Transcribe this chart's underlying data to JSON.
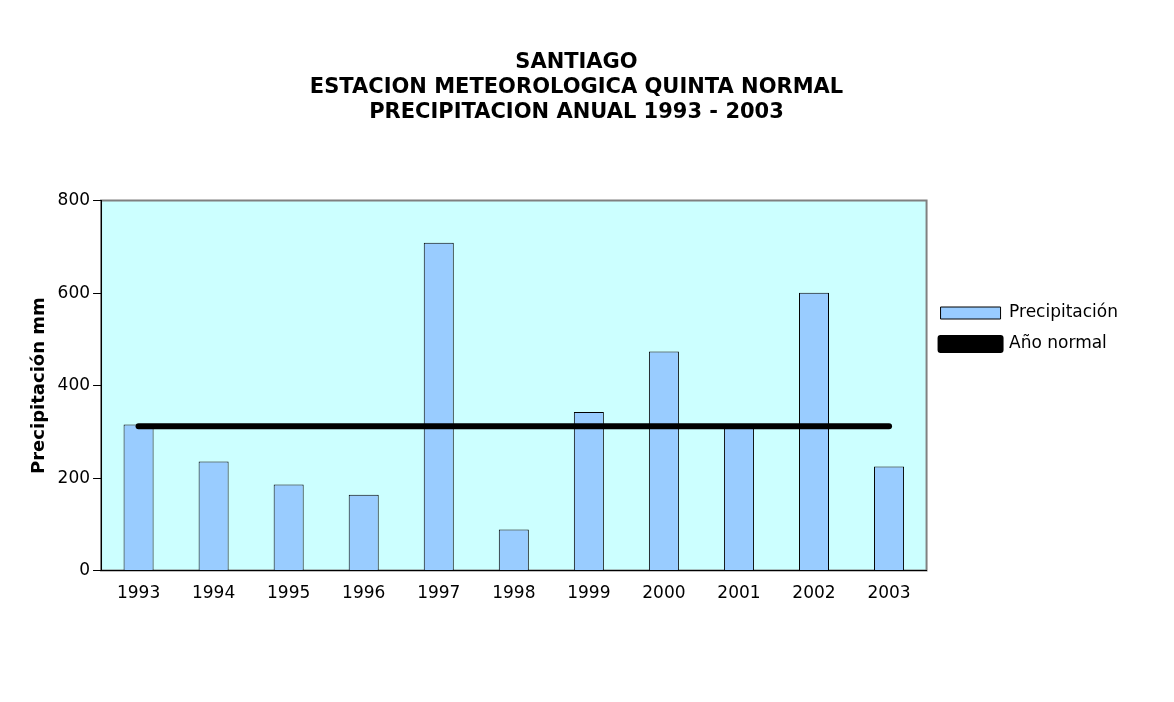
{
  "chart_data": {
    "type": "bar",
    "title": "SANTIAGO\nESTACION METEOROLOGICA QUINTA NORMAL\nPRECIPITACION ANUAL 1993 - 2003",
    "ylabel": "Precipitación mm",
    "categories": [
      "1993",
      "1994",
      "1995",
      "1996",
      "1997",
      "1998",
      "1999",
      "2000",
      "2001",
      "2002",
      "2003"
    ],
    "series": [
      {
        "name": "Precipitación",
        "color": "#99ccff",
        "values": [
          316,
          236,
          186,
          164,
          709,
          89,
          343,
          474,
          310,
          601,
          225
        ]
      },
      {
        "name": "Año normal",
        "type": "line",
        "color": "#000000",
        "values": [
          312,
          312,
          312,
          312,
          312,
          312,
          312,
          312,
          312,
          312,
          312
        ]
      }
    ],
    "ylim": [
      0,
      800
    ],
    "yticks": [
      0,
      200,
      400,
      600,
      800
    ],
    "grid": false,
    "legend": "right"
  }
}
